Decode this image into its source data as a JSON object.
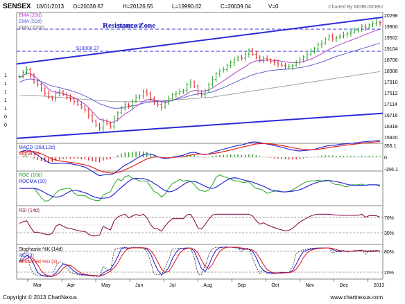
{
  "header": {
    "symbol": "SENSEX",
    "date": "18/01/2013",
    "open": "O=20038.67",
    "high": "H=20126.55",
    "low": "L=19990.62",
    "close": "C=20039.04",
    "volume": "V=0",
    "charted_by": "Charted By MOBUGOBU"
  },
  "footer": {
    "copyright": "Copyright © 2013 ChartNexus",
    "site": "www.chartnexus.com"
  },
  "colors": {
    "blue": "#2a2ad8",
    "red": "#e02020",
    "green": "#22a022",
    "purple": "#b040c8",
    "maroon": "#8a1050",
    "gray": "#a0a0a0",
    "dash": "#5050e0"
  },
  "chart_data": [
    {
      "type": "line",
      "panel": "price",
      "x_labels": [
        "Mar",
        "Apr",
        "May",
        "Jun",
        "Jul",
        "Aug",
        "Sep",
        "Oct",
        "Nov",
        "Dec",
        "2013"
      ],
      "y_ticks": [
        "20298",
        "19900",
        "19502",
        "19104",
        "18706",
        "18308",
        "17910",
        "17512",
        "17114",
        "16716",
        "16318",
        "15920"
      ],
      "left_ticks": [
        "1",
        "1",
        "1",
        "1",
        "1",
        "0",
        "0"
      ],
      "ylim": [
        15700,
        20400
      ],
      "legend": [
        "EMA (20d)",
        "EMA (50d)",
        "EMA (200d)"
      ],
      "annotations": [
        {
          "text": "$19801.47",
          "y": 19801
        },
        {
          "text": "$19006.37",
          "y": 19006
        },
        {
          "text": "Resistance Zone"
        }
      ],
      "close": [
        18100,
        18250,
        18350,
        18150,
        17900,
        17800,
        17650,
        17500,
        17350,
        17300,
        17500,
        17550,
        17450,
        17350,
        17300,
        17200,
        17100,
        17000,
        16900,
        16700,
        16500,
        16350,
        16250,
        16500,
        16400,
        16300,
        16600,
        16800,
        16950,
        17100,
        17050,
        17200,
        17350,
        17400,
        17550,
        17500,
        17300,
        17150,
        17100,
        17000,
        17150,
        17300,
        17450,
        17500,
        17550,
        17600,
        17800,
        17900,
        17750,
        17500,
        17450,
        17600,
        17800,
        18000,
        18200,
        18300,
        18350,
        18500,
        18600,
        18700,
        18800,
        18750,
        18900,
        19050,
        18900,
        18800,
        18700,
        18750,
        18700,
        18650,
        18600,
        18550,
        18500,
        18450,
        18450,
        18500,
        18600,
        18700,
        18800,
        18900,
        19000,
        19100,
        19250,
        19300,
        19450,
        19550,
        19450,
        19500,
        19550,
        19600,
        19650,
        19700,
        19750,
        19800,
        19900,
        19850,
        19950,
        20000,
        20050,
        20039
      ],
      "ema20": [
        18050,
        18140,
        18220,
        18210,
        18120,
        18020,
        17900,
        17780,
        17650,
        17560,
        17540,
        17520,
        17490,
        17440,
        17400,
        17340,
        17270,
        17190,
        17100,
        16980,
        16840,
        16700,
        16560,
        16540,
        16500,
        16450,
        16470,
        16550,
        16650,
        16760,
        16830,
        16920,
        17020,
        17110,
        17210,
        17270,
        17280,
        17260,
        17220,
        17190,
        17180,
        17200,
        17250,
        17300,
        17350,
        17400,
        17480,
        17560,
        17600,
        17590,
        17570,
        17580,
        17620,
        17690,
        17780,
        17860,
        17940,
        18030,
        18120,
        18210,
        18300,
        18370,
        18450,
        18550,
        18620,
        18660,
        18670,
        18680,
        18690,
        18690,
        18680,
        18670,
        18650,
        18630,
        18610,
        18600,
        18600,
        18610,
        18640,
        18680,
        18720,
        18780,
        18850,
        18920,
        19000,
        19070,
        19130,
        19190,
        19250,
        19300,
        19350,
        19400,
        19450,
        19500,
        19560,
        19610,
        19660,
        19710,
        19760,
        19800
      ],
      "ema50": [
        17900,
        17950,
        18000,
        18010,
        17990,
        17960,
        17920,
        17870,
        17810,
        17760,
        17730,
        17700,
        17670,
        17630,
        17600,
        17560,
        17510,
        17460,
        17400,
        17340,
        17270,
        17200,
        17120,
        17080,
        17030,
        16980,
        16960,
        16960,
        16970,
        17000,
        17020,
        17040,
        17070,
        17100,
        17140,
        17170,
        17190,
        17200,
        17210,
        17210,
        17220,
        17230,
        17250,
        17280,
        17310,
        17340,
        17380,
        17420,
        17450,
        17470,
        17480,
        17500,
        17520,
        17550,
        17600,
        17650,
        17700,
        17760,
        17820,
        17880,
        17940,
        18000,
        18050,
        18110,
        18160,
        18200,
        18230,
        18260,
        18290,
        18310,
        18330,
        18340,
        18350,
        18360,
        18370,
        18380,
        18400,
        18420,
        18440,
        18470,
        18500,
        18540,
        18580,
        18620,
        18670,
        18720,
        18770,
        18820,
        18860,
        18900,
        18940,
        18980,
        19020,
        19060,
        19100,
        19140,
        19180,
        19220,
        19260,
        19300
      ],
      "ema200": [
        17400,
        17410,
        17420,
        17420,
        17420,
        17410,
        17400,
        17390,
        17380,
        17370,
        17360,
        17350,
        17340,
        17330,
        17320,
        17310,
        17300,
        17290,
        17280,
        17270,
        17260,
        17250,
        17240,
        17230,
        17220,
        17210,
        17200,
        17200,
        17200,
        17200,
        17200,
        17200,
        17200,
        17200,
        17210,
        17210,
        17220,
        17220,
        17230,
        17230,
        17240,
        17240,
        17250,
        17260,
        17270,
        17280,
        17290,
        17300,
        17310,
        17320,
        17330,
        17340,
        17350,
        17360,
        17380,
        17400,
        17420,
        17440,
        17460,
        17480,
        17500,
        17520,
        17540,
        17560,
        17580,
        17600,
        17620,
        17640,
        17660,
        17680,
        17700,
        17720,
        17740,
        17760,
        17780,
        17800,
        17820,
        17840,
        17860,
        17880,
        17900,
        17920,
        17940,
        17960,
        17980,
        18000,
        18020,
        18040,
        18060,
        18080,
        18100,
        18120,
        18140,
        18160,
        18180,
        18200,
        18220,
        18240,
        18260,
        18280
      ]
    },
    {
      "type": "line",
      "panel": "macd",
      "series": [
        {
          "name": "MACD (26d,12d)"
        },
        {
          "name": "Signal (9)"
        }
      ],
      "y_ticks": [
        "356.1",
        "0",
        "-356.1"
      ],
      "ylim": [
        -420,
        420
      ]
    },
    {
      "type": "line",
      "panel": "roc",
      "series": [
        {
          "name": "ROC (10d)"
        },
        {
          "name": "ROCMA (10)"
        }
      ],
      "ylim": [
        -10,
        10
      ]
    },
    {
      "type": "line",
      "panel": "rsi",
      "series": [
        {
          "name": "RSI (14d)"
        }
      ],
      "y_ticks": [
        "70%",
        "30%"
      ],
      "ylim": [
        0,
        100
      ]
    },
    {
      "type": "line",
      "panel": "stochastic",
      "series": [
        {
          "name": "Stochastic %K (14d)"
        },
        {
          "name": "%D (3)"
        },
        {
          "name": "Smoothed %D (3)"
        }
      ],
      "y_ticks": [
        "80%",
        "20%"
      ],
      "ylim": [
        0,
        100
      ]
    }
  ]
}
